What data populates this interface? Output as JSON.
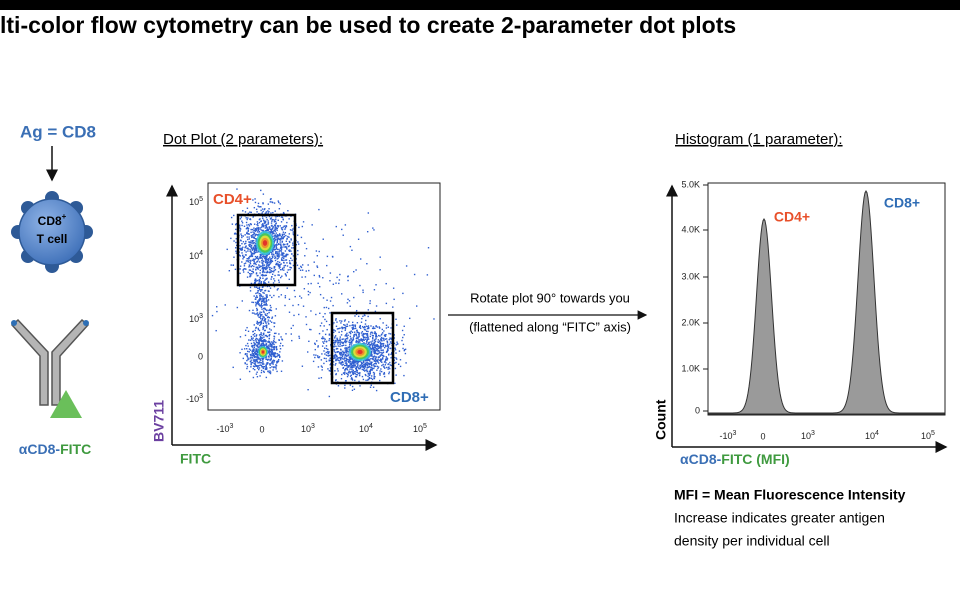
{
  "title": "lti-color flow cytometry can be used to create 2-parameter dot plots",
  "antigen": {
    "label": "Ag = CD8"
  },
  "cell": {
    "line1": "CD8",
    "line1_sup": "+",
    "line2": "T cell"
  },
  "antibody": {
    "prefix": "αCD8-",
    "suffix": "FITC"
  },
  "dot_plot": {
    "heading": "Dot Plot (2 parameters):",
    "x_label": "FITC",
    "y_label": "BV711",
    "gate_labels": [
      "CD4+",
      "CD8+"
    ],
    "x_ticks": [
      {
        "base": "-10",
        "exp": "3"
      },
      {
        "text": "0"
      },
      {
        "base": "10",
        "exp": "3"
      },
      {
        "base": "10",
        "exp": "4"
      },
      {
        "base": "10",
        "exp": "5"
      }
    ],
    "y_ticks": [
      {
        "base": "10",
        "exp": "5"
      },
      {
        "base": "10",
        "exp": "4"
      },
      {
        "base": "10",
        "exp": "3"
      },
      {
        "text": "0"
      },
      {
        "base": "-10",
        "exp": "3"
      }
    ]
  },
  "arrow": {
    "line1": "Rotate plot 90° towards you",
    "line2": "(flattened along “FITC” axis)"
  },
  "histogram": {
    "heading": "Histogram (1 parameter):",
    "x_label_prefix": "αCD8-",
    "x_label_suffix": "FITC (MFI)",
    "y_label": "Count",
    "peak_labels": [
      "CD4+",
      "CD8+"
    ],
    "x_ticks": [
      {
        "base": "-10",
        "exp": "3"
      },
      {
        "text": "0"
      },
      {
        "base": "10",
        "exp": "3"
      },
      {
        "base": "10",
        "exp": "4"
      },
      {
        "base": "10",
        "exp": "5"
      }
    ],
    "y_ticks": [
      "5.0K",
      "4.0K",
      "3.0K",
      "2.0K",
      "1.0K",
      "0"
    ]
  },
  "note": {
    "definition": "MFI = Mean Fluorescence Intensity",
    "line1": "Increase indicates greater antigen",
    "line2": "density per individual cell"
  }
}
